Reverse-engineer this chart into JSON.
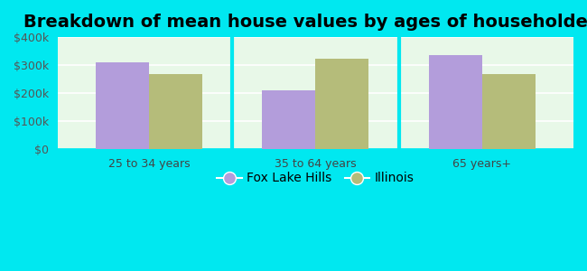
{
  "title": "Breakdown of mean house values by ages of householders",
  "categories": [
    "25 to 34 years",
    "35 to 64 years",
    "65 years+"
  ],
  "fox_lake_hills": [
    310000,
    210000,
    335000
  ],
  "illinois": [
    268000,
    323000,
    268000
  ],
  "fox_lake_hills_color": "#b39ddb",
  "illinois_color": "#b5bc7a",
  "background_outer": "#00e8f0",
  "ylim": [
    0,
    400000
  ],
  "yticks": [
    0,
    100000,
    200000,
    300000,
    400000
  ],
  "ytick_labels": [
    "$0",
    "$100k",
    "$200k",
    "$300k",
    "$400k"
  ],
  "bar_width": 0.32,
  "legend_label_1": "Fox Lake Hills",
  "legend_label_2": "Illinois",
  "title_fontsize": 14,
  "tick_fontsize": 9,
  "legend_fontsize": 10
}
